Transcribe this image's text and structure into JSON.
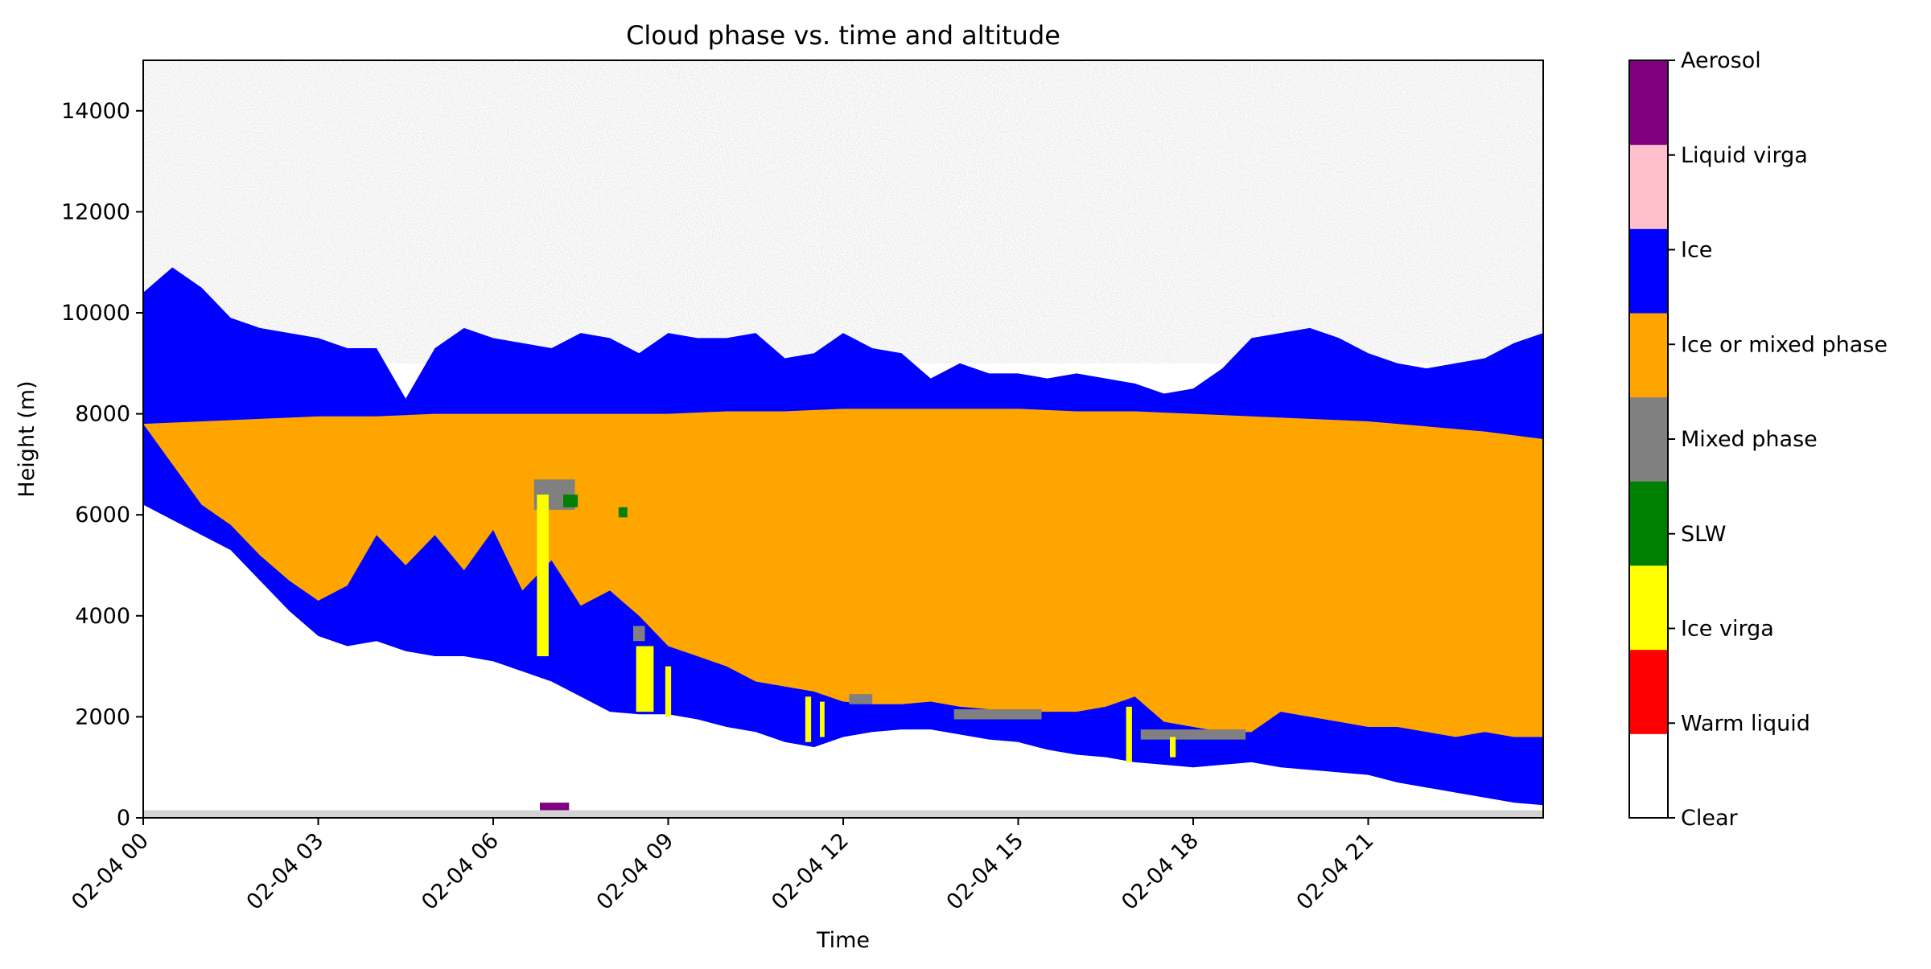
{
  "chart_data": {
    "type": "heatmap",
    "title": "Cloud phase vs. time and altitude",
    "xlabel": "Time",
    "ylabel": "Height (m)",
    "x_range_hours": [
      0,
      24
    ],
    "ylim": [
      0,
      15000
    ],
    "x_ticks": [
      {
        "hour": 0,
        "label": "02-04 00"
      },
      {
        "hour": 3,
        "label": "02-04 03"
      },
      {
        "hour": 6,
        "label": "02-04 06"
      },
      {
        "hour": 9,
        "label": "02-04 09"
      },
      {
        "hour": 12,
        "label": "02-04 12"
      },
      {
        "hour": 15,
        "label": "02-04 15"
      },
      {
        "hour": 18,
        "label": "02-04 18"
      },
      {
        "hour": 21,
        "label": "02-04 21"
      }
    ],
    "y_ticks": [
      0,
      2000,
      4000,
      6000,
      8000,
      10000,
      12000,
      14000
    ],
    "categories": [
      "Clear",
      "Warm liquid",
      "Ice virga",
      "SLW",
      "Mixed phase",
      "Ice or mixed phase",
      "Ice",
      "Liquid virga",
      "Aerosol"
    ],
    "category_colors": [
      "#ffffff",
      "#ff0000",
      "#ffff00",
      "#008000",
      "#808080",
      "#ffa500",
      "#0000ff",
      "#ffc0cb",
      "#800080"
    ],
    "noise_color": "#d3d3d3",
    "cloud_top_m": [
      [
        0,
        10400
      ],
      [
        0.5,
        10900
      ],
      [
        1,
        10500
      ],
      [
        1.5,
        9900
      ],
      [
        2,
        9700
      ],
      [
        2.5,
        9600
      ],
      [
        3,
        9500
      ],
      [
        3.5,
        9300
      ],
      [
        4,
        9300
      ],
      [
        4.5,
        8300
      ],
      [
        5,
        9300
      ],
      [
        5.5,
        9700
      ],
      [
        6,
        9500
      ],
      [
        6.5,
        9400
      ],
      [
        7,
        9300
      ],
      [
        7.5,
        9600
      ],
      [
        8,
        9500
      ],
      [
        8.5,
        9200
      ],
      [
        9,
        9600
      ],
      [
        9.5,
        9500
      ],
      [
        10,
        9500
      ],
      [
        10.5,
        9600
      ],
      [
        11,
        9100
      ],
      [
        11.5,
        9200
      ],
      [
        12,
        9600
      ],
      [
        12.5,
        9300
      ],
      [
        13,
        9200
      ],
      [
        13.5,
        8700
      ],
      [
        14,
        9000
      ],
      [
        14.5,
        8800
      ],
      [
        15,
        8800
      ],
      [
        15.5,
        8700
      ],
      [
        16,
        8800
      ],
      [
        16.5,
        8700
      ],
      [
        17,
        8600
      ],
      [
        17.5,
        8400
      ],
      [
        18,
        8500
      ],
      [
        18.5,
        8900
      ],
      [
        19,
        9500
      ],
      [
        19.5,
        9600
      ],
      [
        20,
        9700
      ],
      [
        20.5,
        9500
      ],
      [
        21,
        9200
      ],
      [
        21.5,
        9000
      ],
      [
        22,
        8900
      ],
      [
        22.5,
        9000
      ],
      [
        23,
        9100
      ],
      [
        23.5,
        9400
      ],
      [
        24,
        9600
      ]
    ],
    "orange_top_m": [
      [
        0,
        7800
      ],
      [
        1,
        7850
      ],
      [
        2,
        7900
      ],
      [
        3,
        7950
      ],
      [
        4,
        7950
      ],
      [
        5,
        8000
      ],
      [
        6,
        8000
      ],
      [
        7,
        8000
      ],
      [
        8,
        8000
      ],
      [
        9,
        8000
      ],
      [
        10,
        8050
      ],
      [
        11,
        8050
      ],
      [
        12,
        8100
      ],
      [
        13,
        8100
      ],
      [
        14,
        8100
      ],
      [
        15,
        8100
      ],
      [
        16,
        8050
      ],
      [
        17,
        8050
      ],
      [
        18,
        8000
      ],
      [
        19,
        7950
      ],
      [
        20,
        7900
      ],
      [
        21,
        7850
      ],
      [
        22,
        7750
      ],
      [
        23,
        7650
      ],
      [
        24,
        7500
      ]
    ],
    "cloud_base_m": [
      [
        0,
        6200
      ],
      [
        0.5,
        5900
      ],
      [
        1,
        5600
      ],
      [
        1.5,
        5300
      ],
      [
        2,
        4700
      ],
      [
        2.5,
        4100
      ],
      [
        3,
        3600
      ],
      [
        3.5,
        3400
      ],
      [
        4,
        3500
      ],
      [
        4.5,
        3300
      ],
      [
        5,
        3200
      ],
      [
        5.5,
        3200
      ],
      [
        6,
        3100
      ],
      [
        6.5,
        2900
      ],
      [
        7,
        2700
      ],
      [
        7.5,
        2400
      ],
      [
        8,
        2100
      ],
      [
        8.5,
        2050
      ],
      [
        9,
        2050
      ],
      [
        9.5,
        1950
      ],
      [
        10,
        1800
      ],
      [
        10.5,
        1700
      ],
      [
        11,
        1500
      ],
      [
        11.5,
        1400
      ],
      [
        12,
        1600
      ],
      [
        12.5,
        1700
      ],
      [
        13,
        1750
      ],
      [
        13.5,
        1750
      ],
      [
        14,
        1650
      ],
      [
        14.5,
        1550
      ],
      [
        15,
        1500
      ],
      [
        15.5,
        1350
      ],
      [
        16,
        1250
      ],
      [
        16.5,
        1200
      ],
      [
        17,
        1100
      ],
      [
        17.5,
        1050
      ],
      [
        18,
        1000
      ],
      [
        18.5,
        1050
      ],
      [
        19,
        1100
      ],
      [
        19.5,
        1000
      ],
      [
        20,
        950
      ],
      [
        20.5,
        900
      ],
      [
        21,
        850
      ],
      [
        21.5,
        700
      ],
      [
        22,
        600
      ],
      [
        22.5,
        500
      ],
      [
        23,
        400
      ],
      [
        23.5,
        300
      ],
      [
        24,
        250
      ]
    ],
    "orange_base_m": [
      [
        0,
        7800
      ],
      [
        0.5,
        7000
      ],
      [
        1,
        6200
      ],
      [
        1.5,
        5800
      ],
      [
        2,
        5200
      ],
      [
        2.5,
        4700
      ],
      [
        3,
        4300
      ],
      [
        3.5,
        4600
      ],
      [
        4,
        5600
      ],
      [
        4.5,
        5000
      ],
      [
        5,
        5600
      ],
      [
        5.5,
        4900
      ],
      [
        6,
        5700
      ],
      [
        6.5,
        4500
      ],
      [
        7,
        5100
      ],
      [
        7.5,
        4200
      ],
      [
        8,
        4500
      ],
      [
        8.5,
        4000
      ],
      [
        9,
        3400
      ],
      [
        9.5,
        3200
      ],
      [
        10,
        3000
      ],
      [
        10.5,
        2700
      ],
      [
        11,
        2600
      ],
      [
        11.5,
        2500
      ],
      [
        12,
        2300
      ],
      [
        12.5,
        2250
      ],
      [
        13,
        2250
      ],
      [
        13.5,
        2300
      ],
      [
        14,
        2200
      ],
      [
        14.5,
        2150
      ],
      [
        15,
        2100
      ],
      [
        15.5,
        2100
      ],
      [
        16,
        2100
      ],
      [
        16.5,
        2200
      ],
      [
        17,
        2400
      ],
      [
        17.5,
        1900
      ],
      [
        18,
        1800
      ],
      [
        18.5,
        1700
      ],
      [
        19,
        1700
      ],
      [
        19.5,
        2100
      ],
      [
        20,
        2000
      ],
      [
        20.5,
        1900
      ],
      [
        21,
        1800
      ],
      [
        21.5,
        1800
      ],
      [
        22,
        1700
      ],
      [
        22.5,
        1600
      ],
      [
        23,
        1700
      ],
      [
        23.5,
        1600
      ],
      [
        24,
        1600
      ]
    ],
    "mixed_phase_segments": [
      {
        "x": [
          13.9,
          15.4
        ],
        "y_m": [
          1950,
          2150
        ]
      },
      {
        "x": [
          17.1,
          18.9
        ],
        "y_m": [
          1550,
          1750
        ]
      },
      {
        "x": [
          12.1,
          12.5
        ],
        "y_m": [
          2250,
          2450
        ]
      },
      {
        "x": [
          8.4,
          8.6
        ],
        "y_m": [
          3500,
          3800
        ]
      },
      {
        "x": [
          6.7,
          7.4
        ],
        "y_m": [
          6100,
          6700
        ]
      }
    ],
    "ice_virga_segments": [
      {
        "x": [
          6.75,
          6.95
        ],
        "y_m": [
          3200,
          6400
        ]
      },
      {
        "x": [
          8.45,
          8.75
        ],
        "y_m": [
          2100,
          3400
        ]
      },
      {
        "x": [
          8.95,
          9.05
        ],
        "y_m": [
          2000,
          3000
        ]
      },
      {
        "x": [
          11.35,
          11.45
        ],
        "y_m": [
          1500,
          2400
        ]
      },
      {
        "x": [
          11.6,
          11.68
        ],
        "y_m": [
          1600,
          2300
        ]
      },
      {
        "x": [
          16.85,
          16.95
        ],
        "y_m": [
          1100,
          2200
        ]
      },
      {
        "x": [
          17.6,
          17.7
        ],
        "y_m": [
          1200,
          1600
        ]
      }
    ],
    "slw_segments": [
      {
        "x": [
          7.2,
          7.45
        ],
        "y_m": [
          6150,
          6400
        ]
      },
      {
        "x": [
          8.15,
          8.3
        ],
        "y_m": [
          5950,
          6150
        ]
      }
    ],
    "aerosol_segments": [
      {
        "x": [
          6.8,
          7.3
        ],
        "y_m": [
          150,
          300
        ]
      }
    ],
    "low_clear_band_m": 150
  }
}
